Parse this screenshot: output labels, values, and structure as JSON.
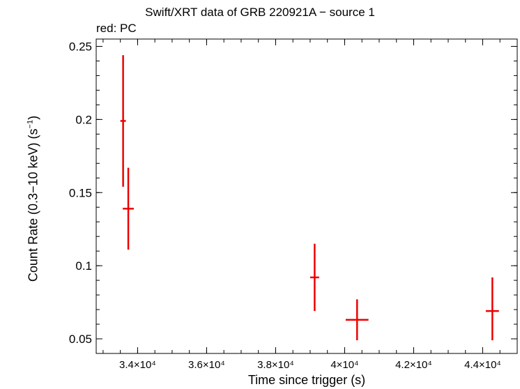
{
  "chart_data": {
    "type": "scatter",
    "title": "Swift/XRT data of GRB 220921A − source 1",
    "subtitle": "red: PC",
    "xlabel": "Time since trigger (s)",
    "ylabel": "Count Rate (0.3−10 keV) (s",
    "ylabel_sup": "−1",
    "ylabel_close": ")",
    "xlim": [
      32800,
      45000
    ],
    "ylim": [
      0.04,
      0.255
    ],
    "x_ticks": [
      {
        "value": 34000,
        "label": "3.4×10⁴"
      },
      {
        "value": 36000,
        "label": "3.6×10⁴"
      },
      {
        "value": 38000,
        "label": "3.8×10⁴"
      },
      {
        "value": 40000,
        "label": "4×10⁴"
      },
      {
        "value": 42000,
        "label": "4.2×10⁴"
      },
      {
        "value": 44000,
        "label": "4.4×10⁴"
      }
    ],
    "y_ticks": [
      {
        "value": 0.05,
        "label": "0.05"
      },
      {
        "value": 0.1,
        "label": "0.1"
      },
      {
        "value": 0.15,
        "label": "0.15"
      },
      {
        "value": 0.2,
        "label": "0.2"
      },
      {
        "value": 0.25,
        "label": "0.25"
      }
    ],
    "series": [
      {
        "color": "#ee0000",
        "points": [
          {
            "x": 33580,
            "xerr": [
              80,
              80
            ],
            "y": 0.199,
            "yerr": [
              0.045,
              0.045
            ]
          },
          {
            "x": 33730,
            "xerr": [
              160,
              160
            ],
            "y": 0.139,
            "yerr": [
              0.028,
              0.028
            ]
          },
          {
            "x": 39130,
            "xerr": [
              130,
              130
            ],
            "y": 0.092,
            "yerr": [
              0.023,
              0.023
            ]
          },
          {
            "x": 40360,
            "xerr": [
              330,
              330
            ],
            "y": 0.063,
            "yerr": [
              0.014,
              0.014
            ]
          },
          {
            "x": 44280,
            "xerr": [
              190,
              190
            ],
            "y": 0.069,
            "yerr": [
              0.02,
              0.023
            ]
          }
        ]
      }
    ]
  }
}
